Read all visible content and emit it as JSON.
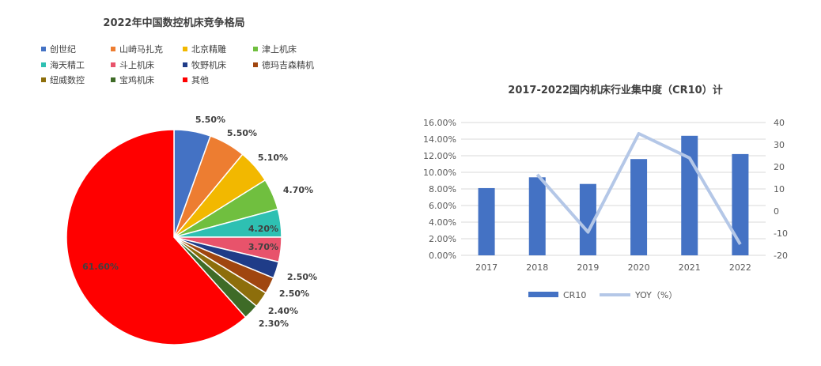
{
  "chart_data": [
    {
      "type": "pie",
      "title": "2022年中国数控机床竞争格局",
      "legend_position": "top",
      "slices": [
        {
          "name": "创世纪",
          "value": 5.5,
          "label": "5.50%",
          "color": "#4472C4"
        },
        {
          "name": "山崎马扎克",
          "value": 5.5,
          "label": "5.50%",
          "color": "#ED7D31"
        },
        {
          "name": "北京精雕",
          "value": 5.1,
          "label": "5.10%",
          "color": "#F2B800"
        },
        {
          "name": "津上机床",
          "value": 4.7,
          "label": "4.70%",
          "color": "#70BF3F"
        },
        {
          "name": "海天精工",
          "value": 4.2,
          "label": "4.20%",
          "color": "#2EC0B2"
        },
        {
          "name": "斗上机床",
          "value": 3.7,
          "label": "3.70%",
          "color": "#E8536B"
        },
        {
          "name": "牧野机床",
          "value": 2.5,
          "label": "2.50%",
          "color": "#1F3C88"
        },
        {
          "name": "德玛吉森精机",
          "value": 2.5,
          "label": "2.50%",
          "color": "#A0460F"
        },
        {
          "name": "纽威数控",
          "value": 2.4,
          "label": "2.40%",
          "color": "#8D6E0B"
        },
        {
          "name": "宝鸡机床",
          "value": 2.3,
          "label": "2.30%",
          "color": "#3E6B27"
        },
        {
          "name": "其他",
          "value": 61.6,
          "label": "61.60%",
          "color": "#FF0000"
        }
      ]
    },
    {
      "type": "bar+line",
      "title": "2017-2022国内机床行业集中度（CR10）计",
      "categories": [
        "2017",
        "2018",
        "2019",
        "2020",
        "2021",
        "2022"
      ],
      "series": [
        {
          "name": "CR10",
          "type": "bar",
          "axis": "left",
          "color": "#4472C4",
          "values": [
            8.1,
            9.4,
            8.6,
            11.6,
            14.4,
            12.2
          ]
        },
        {
          "name": "YOY（%）",
          "type": "line",
          "axis": "right",
          "color": "#B4C7E7",
          "values": [
            null,
            16.5,
            -9.5,
            35,
            24,
            -15
          ]
        }
      ],
      "y_left": {
        "min": 0,
        "max": 16,
        "step": 2,
        "ticks": [
          "0.00%",
          "2.00%",
          "4.00%",
          "6.00%",
          "8.00%",
          "10.00%",
          "12.00%",
          "14.00%",
          "16.00%"
        ]
      },
      "y_right": {
        "min": -20,
        "max": 40,
        "step": 10,
        "ticks": [
          "-20",
          "-10",
          "0",
          "10",
          "20",
          "30",
          "40"
        ]
      },
      "grid": true,
      "legend_position": "bottom"
    }
  ]
}
